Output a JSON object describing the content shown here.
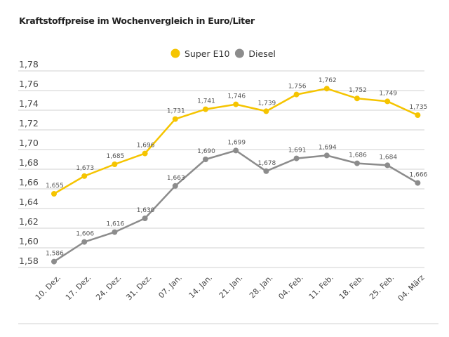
{
  "chart_data": {
    "type": "line",
    "title": "Kraftstoffpreise im Wochenvergleich in Euro/Liter",
    "categories": [
      "10. Dez.",
      "17. Dez.",
      "24. Dez.",
      "31. Dez.",
      "07. Jan.",
      "14. Jan.",
      "21. Jan.",
      "28. Jan.",
      "04. Feb.",
      "11. Feb.",
      "18. Feb.",
      "25. Feb.",
      "04. März"
    ],
    "series": [
      {
        "name": "Super E10",
        "color": "#f5c400",
        "values": [
          1.655,
          1.673,
          1.685,
          1.696,
          1.731,
          1.741,
          1.746,
          1.739,
          1.756,
          1.762,
          1.752,
          1.749,
          1.735
        ]
      },
      {
        "name": "Diesel",
        "color": "#8c8c8c",
        "values": [
          1.586,
          1.606,
          1.616,
          1.63,
          1.663,
          1.69,
          1.699,
          1.678,
          1.691,
          1.694,
          1.686,
          1.684,
          1.666
        ]
      }
    ],
    "yticks": [
      "1,58",
      "1,60",
      "1,62",
      "1,64",
      "1,66",
      "1,68",
      "1,70",
      "1,72",
      "1,74",
      "1,76",
      "1,78"
    ],
    "ylim": [
      1.58,
      1.78
    ],
    "grid": true,
    "legend": "top-center",
    "xlabel": "",
    "ylabel": ""
  }
}
